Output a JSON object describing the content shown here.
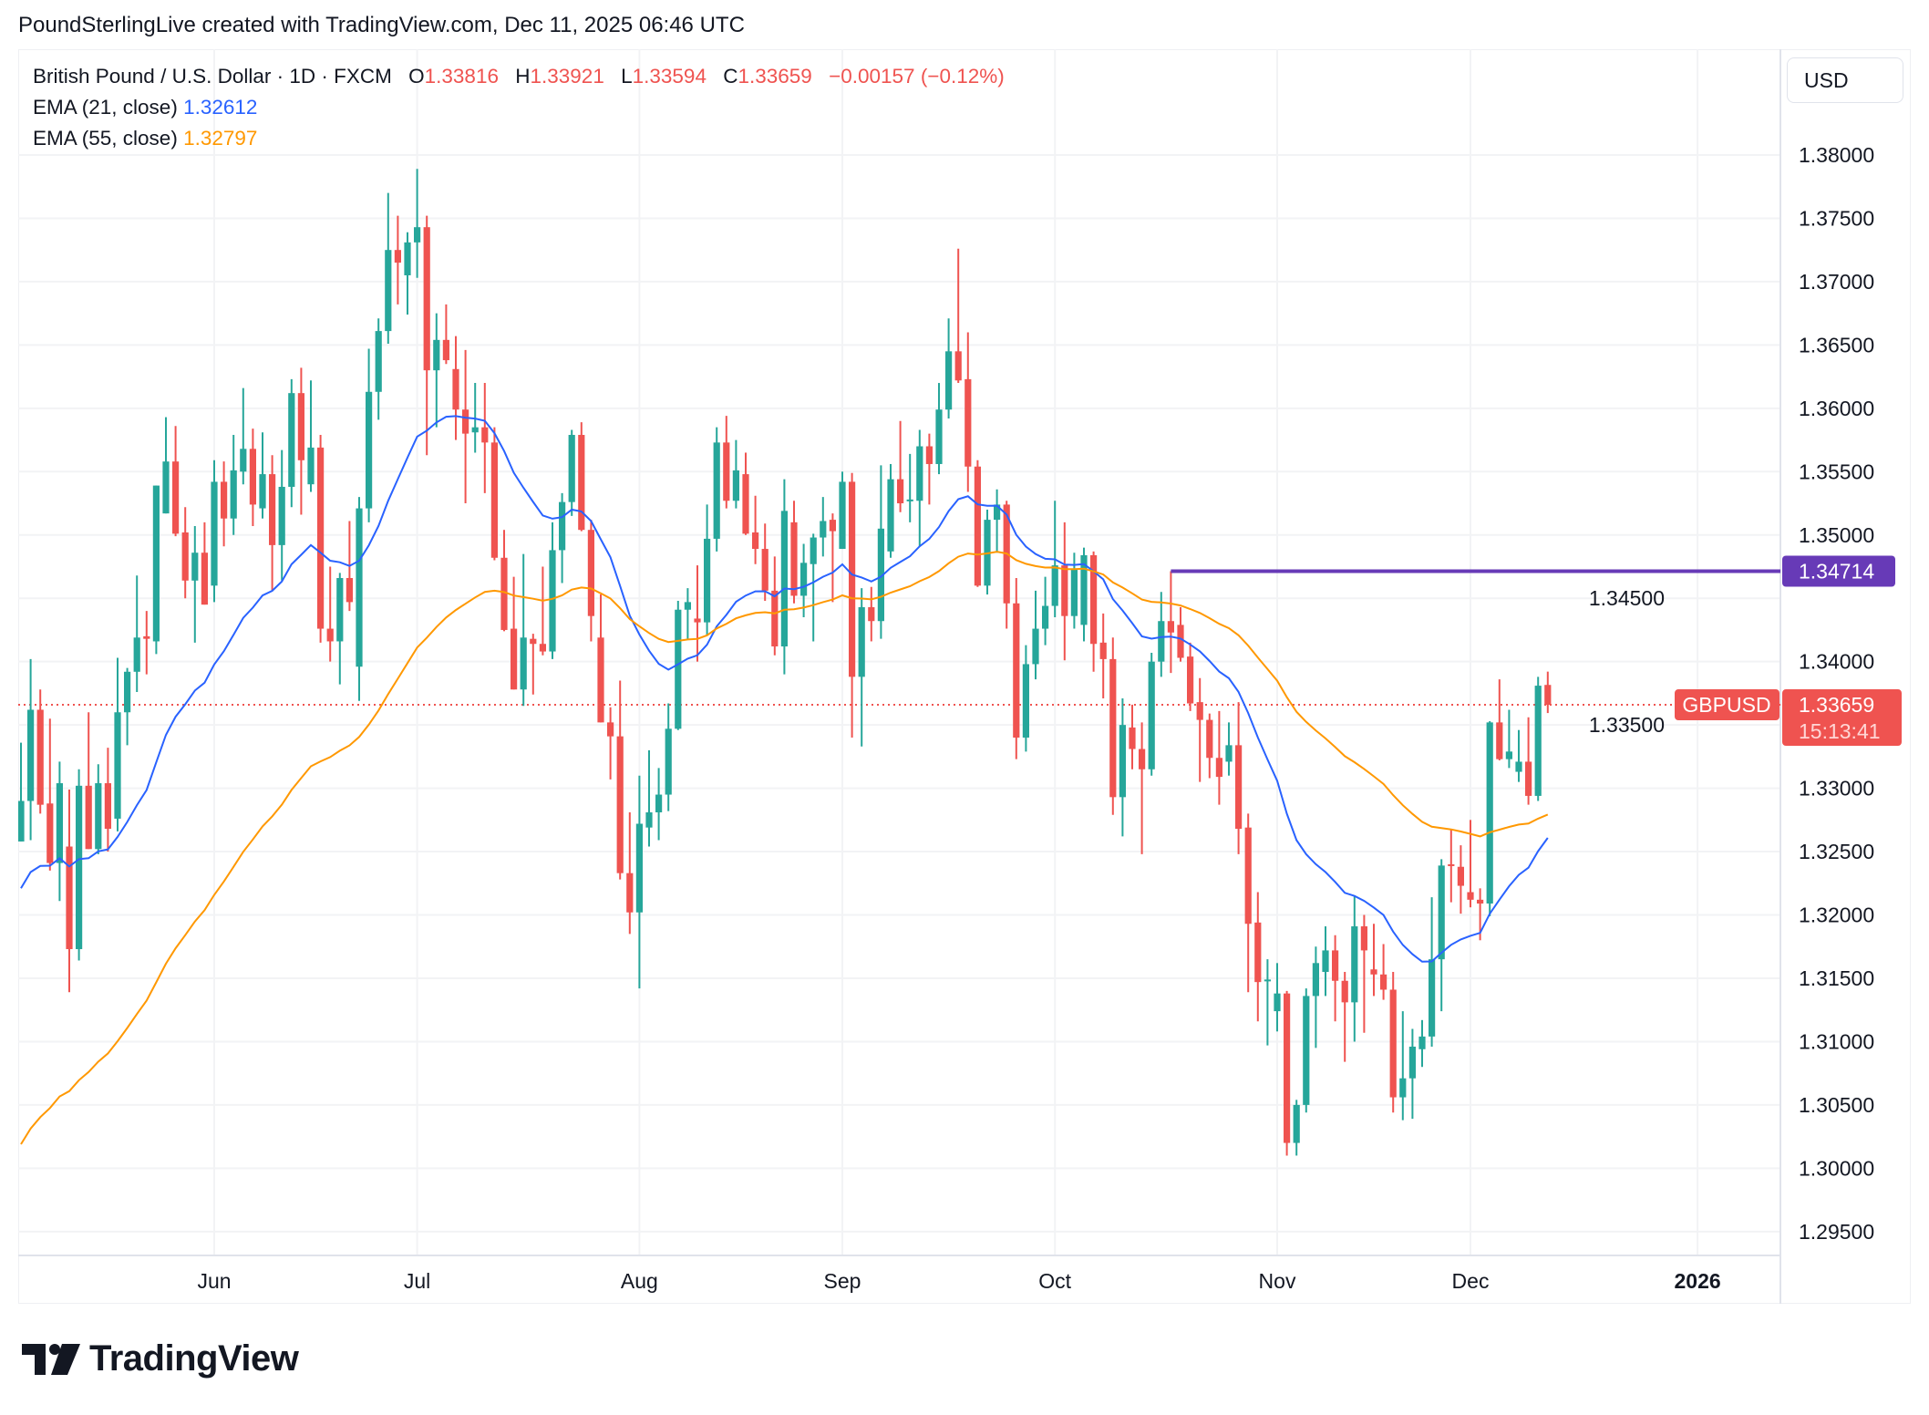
{
  "credit": "PoundSterlingLive created with TradingView.com, Dec 11, 2025 06:46 UTC",
  "legend": {
    "symbol_line": "British Pound / U.S. Dollar · 1D · FXCM",
    "o_label": "O",
    "o_value": "1.33816",
    "h_label": "H",
    "h_value": "1.33921",
    "l_label": "L",
    "l_value": "1.33594",
    "c_label": "C",
    "c_value": "1.33659",
    "change": "−0.00157 (−0.12%)",
    "ema21_label": "EMA (21, close)",
    "ema21_value": "1.32612",
    "ema55_label": "EMA (55, close)",
    "ema55_value": "1.32797"
  },
  "currency_button": "USD",
  "logo_text": "TradingView",
  "colors": {
    "up": "#26a69a",
    "down": "#ef5350",
    "ema21": "#2962ff",
    "ema55": "#ff9800",
    "level_line": "#673ab7",
    "grid": "#f2f3f5"
  },
  "chart_data": {
    "type": "candlestick",
    "symbol": "GBPUSD",
    "interval": "1D",
    "ylim": [
      1.2925,
      1.3835
    ],
    "grid": true,
    "yticks": [
      "1.38000",
      "1.37500",
      "1.37000",
      "1.36500",
      "1.36000",
      "1.35500",
      "1.35000",
      "1.34500",
      "1.34000",
      "1.33500",
      "1.33000",
      "1.32500",
      "1.32000",
      "1.31500",
      "1.31000",
      "1.30500",
      "1.30000",
      "1.29500"
    ],
    "xticks": [
      {
        "label": "Jun",
        "bar": 20
      },
      {
        "label": "Jul",
        "bar": 41
      },
      {
        "label": "Aug",
        "bar": 64
      },
      {
        "label": "Sep",
        "bar": 85
      },
      {
        "label": "Oct",
        "bar": 107
      },
      {
        "label": "Nov",
        "bar": 130
      },
      {
        "label": "Dec",
        "bar": 150
      },
      {
        "label": "2026",
        "bar": 173.5,
        "bold": true
      }
    ],
    "ohlc_fields": [
      "open",
      "high",
      "low",
      "close"
    ],
    "candles": [
      [
        1.3258,
        1.3336,
        1.3258,
        1.329
      ],
      [
        1.329,
        1.3402,
        1.3259,
        1.3362
      ],
      [
        1.3362,
        1.3378,
        1.328,
        1.3287
      ],
      [
        1.3288,
        1.3355,
        1.3235,
        1.3241
      ],
      [
        1.3241,
        1.3321,
        1.3211,
        1.3304
      ],
      [
        1.3254,
        1.3299,
        1.3139,
        1.3173
      ],
      [
        1.3173,
        1.3315,
        1.3164,
        1.3302
      ],
      [
        1.3302,
        1.336,
        1.3252,
        1.3252
      ],
      [
        1.3252,
        1.3319,
        1.3248,
        1.3304
      ],
      [
        1.3304,
        1.3332,
        1.325,
        1.3268
      ],
      [
        1.3276,
        1.3403,
        1.3266,
        1.336
      ],
      [
        1.336,
        1.3395,
        1.3334,
        1.3392
      ],
      [
        1.3392,
        1.3468,
        1.3376,
        1.3419
      ],
      [
        1.342,
        1.344,
        1.339,
        1.3418
      ],
      [
        1.3416,
        1.3539,
        1.3406,
        1.3539
      ],
      [
        1.3517,
        1.3593,
        1.3517,
        1.3558
      ],
      [
        1.3558,
        1.3586,
        1.3499,
        1.3501
      ],
      [
        1.3502,
        1.3522,
        1.345,
        1.3464
      ],
      [
        1.3464,
        1.3507,
        1.3415,
        1.3486
      ],
      [
        1.3486,
        1.351,
        1.3445,
        1.3445
      ],
      [
        1.346,
        1.3559,
        1.3447,
        1.3542
      ],
      [
        1.3542,
        1.3558,
        1.3491,
        1.3513
      ],
      [
        1.3513,
        1.3579,
        1.35,
        1.3551
      ],
      [
        1.355,
        1.3616,
        1.354,
        1.3568
      ],
      [
        1.3568,
        1.3584,
        1.3507,
        1.3524
      ],
      [
        1.3521,
        1.3581,
        1.3513,
        1.3548
      ],
      [
        1.3548,
        1.3563,
        1.3456,
        1.3492
      ],
      [
        1.3492,
        1.3567,
        1.3464,
        1.3538
      ],
      [
        1.3538,
        1.3623,
        1.3522,
        1.3612
      ],
      [
        1.3612,
        1.3632,
        1.3516,
        1.3559
      ],
      [
        1.354,
        1.3622,
        1.3534,
        1.3569
      ],
      [
        1.3569,
        1.3579,
        1.3415,
        1.3426
      ],
      [
        1.3426,
        1.3475,
        1.34,
        1.3416
      ],
      [
        1.3416,
        1.347,
        1.3382,
        1.3466
      ],
      [
        1.3466,
        1.3511,
        1.344,
        1.3447
      ],
      [
        1.3396,
        1.353,
        1.3369,
        1.3521
      ],
      [
        1.3521,
        1.3647,
        1.351,
        1.3613
      ],
      [
        1.3613,
        1.3671,
        1.3591,
        1.3661
      ],
      [
        1.3661,
        1.377,
        1.3651,
        1.3725
      ],
      [
        1.3725,
        1.3752,
        1.3682,
        1.3715
      ],
      [
        1.3705,
        1.3739,
        1.3674,
        1.3731
      ],
      [
        1.3731,
        1.3789,
        1.3703,
        1.3743
      ],
      [
        1.3743,
        1.3752,
        1.3563,
        1.363
      ],
      [
        1.363,
        1.3675,
        1.3585,
        1.3654
      ],
      [
        1.3654,
        1.3682,
        1.3635,
        1.3638
      ],
      [
        1.3631,
        1.3657,
        1.3575,
        1.3599
      ],
      [
        1.3599,
        1.3646,
        1.3525,
        1.358
      ],
      [
        1.3581,
        1.362,
        1.3565,
        1.3585
      ],
      [
        1.3585,
        1.362,
        1.3533,
        1.3573
      ],
      [
        1.3573,
        1.3585,
        1.348,
        1.3482
      ],
      [
        1.3482,
        1.3504,
        1.3424,
        1.3425
      ],
      [
        1.3426,
        1.3467,
        1.3378,
        1.3378
      ],
      [
        1.3378,
        1.3485,
        1.3365,
        1.3419
      ],
      [
        1.3418,
        1.3422,
        1.3374,
        1.3414
      ],
      [
        1.3414,
        1.3475,
        1.3405,
        1.3408
      ],
      [
        1.3408,
        1.351,
        1.3402,
        1.3488
      ],
      [
        1.3488,
        1.3533,
        1.3462,
        1.3526
      ],
      [
        1.3526,
        1.3583,
        1.3515,
        1.3579
      ],
      [
        1.3579,
        1.3589,
        1.3503,
        1.3504
      ],
      [
        1.3504,
        1.3512,
        1.3416,
        1.3436
      ],
      [
        1.3419,
        1.3453,
        1.3352,
        1.3352
      ],
      [
        1.3352,
        1.3364,
        1.3307,
        1.3341
      ],
      [
        1.3341,
        1.3385,
        1.3228,
        1.3233
      ],
      [
        1.3233,
        1.3281,
        1.3185,
        1.3202
      ],
      [
        1.3202,
        1.331,
        1.3142,
        1.3272
      ],
      [
        1.3269,
        1.333,
        1.3254,
        1.3281
      ],
      [
        1.3281,
        1.3316,
        1.3259,
        1.3295
      ],
      [
        1.3295,
        1.3367,
        1.3282,
        1.3347
      ],
      [
        1.3347,
        1.3448,
        1.3346,
        1.3441
      ],
      [
        1.3441,
        1.3458,
        1.3418,
        1.3447
      ],
      [
        1.3434,
        1.3476,
        1.34,
        1.3431
      ],
      [
        1.3431,
        1.3524,
        1.3421,
        1.3497
      ],
      [
        1.3497,
        1.3585,
        1.3487,
        1.3573
      ],
      [
        1.3573,
        1.3594,
        1.3521,
        1.3527
      ],
      [
        1.3527,
        1.3575,
        1.3521,
        1.3551
      ],
      [
        1.3548,
        1.3565,
        1.35,
        1.3501
      ],
      [
        1.3502,
        1.3531,
        1.3477,
        1.3489
      ],
      [
        1.3489,
        1.3509,
        1.3448,
        1.3456
      ],
      [
        1.3456,
        1.3483,
        1.3405,
        1.3412
      ],
      [
        1.3412,
        1.3544,
        1.339,
        1.3519
      ],
      [
        1.351,
        1.3527,
        1.3446,
        1.3452
      ],
      [
        1.3452,
        1.3493,
        1.3435,
        1.3478
      ],
      [
        1.3477,
        1.3501,
        1.3416,
        1.3498
      ],
      [
        1.3498,
        1.353,
        1.3483,
        1.3511
      ],
      [
        1.3512,
        1.3517,
        1.3447,
        1.3503
      ],
      [
        1.3489,
        1.355,
        1.3489,
        1.3542
      ],
      [
        1.3542,
        1.3549,
        1.334,
        1.3388
      ],
      [
        1.3388,
        1.3458,
        1.3333,
        1.3443
      ],
      [
        1.3443,
        1.3459,
        1.3416,
        1.3432
      ],
      [
        1.3432,
        1.3555,
        1.3418,
        1.3505
      ],
      [
        1.3487,
        1.3556,
        1.3482,
        1.3544
      ],
      [
        1.3544,
        1.359,
        1.3518,
        1.3525
      ],
      [
        1.3527,
        1.3564,
        1.351,
        1.3528
      ],
      [
        1.3527,
        1.3583,
        1.3491,
        1.357
      ],
      [
        1.357,
        1.358,
        1.3524,
        1.3556
      ],
      [
        1.3556,
        1.362,
        1.3548,
        1.3599
      ],
      [
        1.3599,
        1.3671,
        1.3592,
        1.3645
      ],
      [
        1.3645,
        1.3726,
        1.362,
        1.3622
      ],
      [
        1.3623,
        1.366,
        1.3534,
        1.3554
      ],
      [
        1.3554,
        1.3559,
        1.3459,
        1.346
      ],
      [
        1.346,
        1.352,
        1.3453,
        1.3512
      ],
      [
        1.3512,
        1.3536,
        1.3486,
        1.3524
      ],
      [
        1.3524,
        1.3527,
        1.3426,
        1.3446
      ],
      [
        1.3446,
        1.3466,
        1.3323,
        1.334
      ],
      [
        1.334,
        1.3413,
        1.3329,
        1.3398
      ],
      [
        1.3398,
        1.3456,
        1.3386,
        1.3426
      ],
      [
        1.3426,
        1.3467,
        1.3413,
        1.3444
      ],
      [
        1.3444,
        1.3527,
        1.3435,
        1.3476
      ],
      [
        1.3476,
        1.351,
        1.3401,
        1.3436
      ],
      [
        1.3436,
        1.3486,
        1.3426,
        1.3473
      ],
      [
        1.3429,
        1.349,
        1.3416,
        1.3484
      ],
      [
        1.3484,
        1.3487,
        1.3392,
        1.3414
      ],
      [
        1.3415,
        1.3438,
        1.3371,
        1.3402
      ],
      [
        1.3402,
        1.3419,
        1.3279,
        1.3293
      ],
      [
        1.3293,
        1.3371,
        1.3262,
        1.335
      ],
      [
        1.3348,
        1.3366,
        1.3315,
        1.3331
      ],
      [
        1.3331,
        1.3352,
        1.3248,
        1.3315
      ],
      [
        1.3315,
        1.3407,
        1.331,
        1.34
      ],
      [
        1.34,
        1.3455,
        1.3388,
        1.3432
      ],
      [
        1.3432,
        1.34714,
        1.3391,
        1.3423
      ],
      [
        1.3429,
        1.3443,
        1.34,
        1.3403
      ],
      [
        1.3404,
        1.3415,
        1.3361,
        1.3367
      ],
      [
        1.3368,
        1.3387,
        1.3305,
        1.3354
      ],
      [
        1.3354,
        1.3359,
        1.3308,
        1.3324
      ],
      [
        1.3324,
        1.3361,
        1.3287,
        1.3309
      ],
      [
        1.3321,
        1.3352,
        1.331,
        1.3334
      ],
      [
        1.3334,
        1.3368,
        1.3248,
        1.3268
      ],
      [
        1.3269,
        1.328,
        1.3139,
        1.3193
      ],
      [
        1.3194,
        1.3218,
        1.3116,
        1.3147
      ],
      [
        1.3148,
        1.3165,
        1.3097,
        1.3149
      ],
      [
        1.3124,
        1.3162,
        1.3108,
        1.3138
      ],
      [
        1.3138,
        1.314,
        1.301,
        1.302
      ],
      [
        1.302,
        1.3054,
        1.301,
        1.305
      ],
      [
        1.305,
        1.3142,
        1.3044,
        1.3136
      ],
      [
        1.3136,
        1.3175,
        1.3095,
        1.3162
      ],
      [
        1.3155,
        1.3191,
        1.3136,
        1.3172
      ],
      [
        1.3172,
        1.3184,
        1.3116,
        1.3148
      ],
      [
        1.3148,
        1.3155,
        1.3084,
        1.3131
      ],
      [
        1.3131,
        1.3215,
        1.31,
        1.3191
      ],
      [
        1.3191,
        1.32,
        1.3107,
        1.3172
      ],
      [
        1.3157,
        1.3193,
        1.3136,
        1.3153
      ],
      [
        1.3153,
        1.3177,
        1.3133,
        1.3141
      ],
      [
        1.3141,
        1.3155,
        1.3044,
        1.3056
      ],
      [
        1.3056,
        1.3124,
        1.3038,
        1.3071
      ],
      [
        1.3071,
        1.311,
        1.3039,
        1.3096
      ],
      [
        1.3094,
        1.3117,
        1.308,
        1.3104
      ],
      [
        1.3104,
        1.3214,
        1.3096,
        1.3165
      ],
      [
        1.3165,
        1.3244,
        1.3124,
        1.3239
      ],
      [
        1.324,
        1.3268,
        1.321,
        1.3239
      ],
      [
        1.3238,
        1.3255,
        1.3201,
        1.3223
      ],
      [
        1.3218,
        1.3275,
        1.3206,
        1.3212
      ],
      [
        1.3212,
        1.3221,
        1.318,
        1.3209
      ],
      [
        1.3209,
        1.3353,
        1.3199,
        1.3352
      ],
      [
        1.3352,
        1.3386,
        1.3322,
        1.3323
      ],
      [
        1.3323,
        1.3362,
        1.3316,
        1.3329
      ],
      [
        1.3313,
        1.3346,
        1.3305,
        1.3321
      ],
      [
        1.3321,
        1.3356,
        1.3287,
        1.3294
      ],
      [
        1.3294,
        1.3388,
        1.329,
        1.3381
      ],
      [
        1.33816,
        1.33921,
        1.33594,
        1.33659
      ]
    ],
    "ema_series": [
      {
        "name": "EMA (21, close)",
        "length": 21,
        "first_value": 1.3221,
        "color": "#2962ff"
      },
      {
        "name": "EMA (55, close)",
        "length": 55,
        "first_value": 1.3019,
        "color": "#ff9800"
      }
    ],
    "horizontal_level": {
      "price": 1.34714,
      "label": "1.34714",
      "from_bar": 119
    },
    "last_price": {
      "price": 1.33659,
      "label": "1.33659",
      "symbol_label": "GBPUSD",
      "countdown": "15:13:41"
    }
  }
}
